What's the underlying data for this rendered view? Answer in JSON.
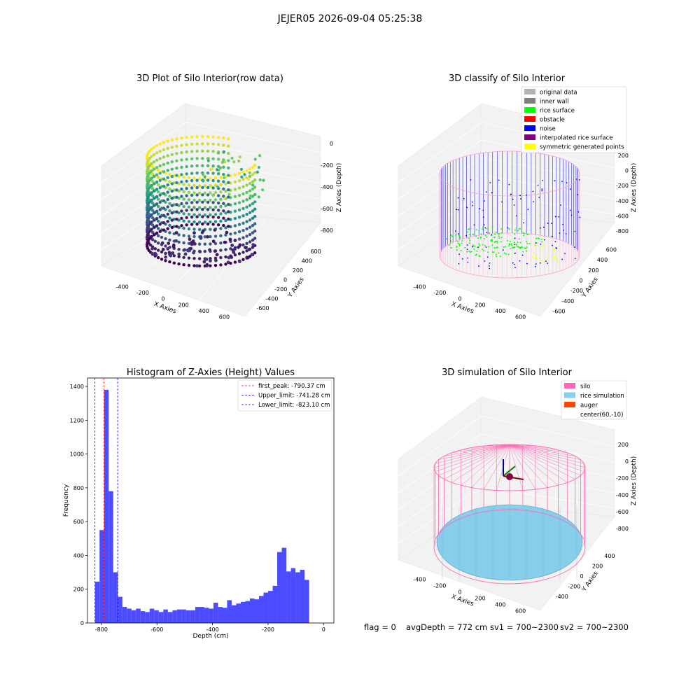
{
  "figure_title": "JEJER05 2026-09-04 05:25:38",
  "status_line": {
    "flag": "flag = 0",
    "avg_depth": "avgDepth = 772 cm",
    "sv1": "sv1 = 700~2300",
    "sv2": "sv2 = 700~2300"
  },
  "chart_data": [
    {
      "id": "raw",
      "type": "scatter",
      "title": "3D Plot of Silo Interior(row data)",
      "xlabel": "X Axies",
      "ylabel": "Y Axies",
      "zlabel": "Z Axies (Depth)",
      "xticks": [
        "-400",
        "-200",
        "0",
        "200",
        "400",
        "600"
      ],
      "yticks": [
        "-600",
        "-400",
        "-200",
        "0",
        "200",
        "400",
        "600"
      ],
      "zticks": [
        "0",
        "-200",
        "-400",
        "-600",
        "-800"
      ],
      "colormap": [
        "#440154",
        "#3b528b",
        "#21918c",
        "#5ec962",
        "#fde725"
      ]
    },
    {
      "id": "classify",
      "type": "scatter",
      "title": "3D classify of Silo Interior",
      "xlabel": "X Axies",
      "ylabel": "Y Axies",
      "zlabel": "Z Axies (Depth)",
      "xticks": [
        "-400",
        "-200",
        "0",
        "200",
        "400",
        "600"
      ],
      "yticks": [
        "-600",
        "-400",
        "-200",
        "0",
        "200",
        "400",
        "600"
      ],
      "zticks": [
        "200",
        "0",
        "-200",
        "-400",
        "-600",
        "-800"
      ],
      "legend_position": "top-right",
      "legend": [
        {
          "label": "original data",
          "color": "#b3b3b3"
        },
        {
          "label": "inner wall",
          "color": "#808080"
        },
        {
          "label": "rice surface",
          "color": "#00ff00"
        },
        {
          "label": "obstacle",
          "color": "#ff0000"
        },
        {
          "label": "noise",
          "color": "#0000ff"
        },
        {
          "label": "interpolated rice surface",
          "color": "#800080"
        },
        {
          "label": "symmetric generated points",
          "color": "#ffff00"
        }
      ]
    },
    {
      "id": "histogram",
      "type": "bar",
      "title": "Histogram of Z-Axies (Height) Values",
      "xlabel": "Depth (cm)",
      "ylabel": "Frequency",
      "xlim": [
        -850,
        37
      ],
      "ylim": [
        0,
        1450
      ],
      "xticks": [
        -800,
        -600,
        -400,
        -200,
        0
      ],
      "yticks": [
        0,
        200,
        400,
        600,
        800,
        1000,
        1200,
        1400
      ],
      "bar_color": "#4b4bff",
      "bin_start": -823,
      "bin_width": 16.4,
      "values": [
        245,
        550,
        1380,
        780,
        300,
        155,
        95,
        85,
        75,
        85,
        70,
        65,
        85,
        75,
        65,
        80,
        65,
        75,
        80,
        80,
        75,
        75,
        95,
        95,
        90,
        85,
        120,
        95,
        90,
        135,
        105,
        115,
        125,
        130,
        145,
        140,
        160,
        180,
        190,
        220,
        420,
        445,
        305,
        325,
        300,
        315,
        255
      ],
      "lines": [
        {
          "label": "first_peak: -790.37 cm",
          "x": -790.37,
          "color": "#ff0000"
        },
        {
          "label": "Upper_limit: -741.28 cm",
          "x": -741.28,
          "color": "#0000ff"
        },
        {
          "label": "Lower_limit: -823.10 cm",
          "x": -823.1,
          "color": "#0000ff"
        }
      ],
      "legend_position": "top-right"
    },
    {
      "id": "simulation",
      "type": "scatter",
      "title": "3D simulation of Silo Interior",
      "xlabel": "X Axies",
      "ylabel": "Y Axies",
      "zlabel": "Z Axies (Depth)",
      "xticks": [
        "-400",
        "-200",
        "0",
        "200",
        "400",
        "600"
      ],
      "yticks": [
        "-400",
        "-200",
        "0",
        "200",
        "400"
      ],
      "zticks": [
        "200",
        "0",
        "-200",
        "-400",
        "-600",
        "-800"
      ],
      "legend_position": "top-right",
      "legend": [
        {
          "label": "silo",
          "color": "#ff69b4"
        },
        {
          "label": "rice simulation",
          "color": "#87ceeb"
        },
        {
          "label": "auger",
          "color": "#ff4500"
        },
        {
          "label": "center(60,-10)",
          "color": "#ffffff"
        }
      ]
    }
  ]
}
